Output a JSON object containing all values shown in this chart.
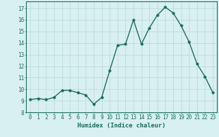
{
  "x": [
    0,
    1,
    2,
    3,
    4,
    5,
    6,
    7,
    8,
    9,
    10,
    11,
    12,
    13,
    14,
    15,
    16,
    17,
    18,
    19,
    20,
    21,
    22,
    23
  ],
  "y": [
    9.1,
    9.2,
    9.1,
    9.3,
    9.9,
    9.9,
    9.7,
    9.5,
    8.7,
    9.3,
    11.6,
    13.8,
    13.9,
    16.0,
    13.9,
    15.3,
    16.4,
    17.1,
    16.6,
    15.5,
    14.1,
    12.2,
    11.1,
    9.7
  ],
  "xlabel": "Humidex (Indice chaleur)",
  "xlim": [
    -0.5,
    23.5
  ],
  "ylim": [
    8,
    17.6
  ],
  "yticks": [
    8,
    9,
    10,
    11,
    12,
    13,
    14,
    15,
    16,
    17
  ],
  "xticks": [
    0,
    1,
    2,
    3,
    4,
    5,
    6,
    7,
    8,
    9,
    10,
    11,
    12,
    13,
    14,
    15,
    16,
    17,
    18,
    19,
    20,
    21,
    22,
    23
  ],
  "line_color": "#1a6b5a",
  "marker_color": "#1a6b5a",
  "bg_color": "#d8f0f0",
  "grid_color": "#b8d8d0",
  "axis_color": "#1a6b5a",
  "label_color": "#1a6b5a",
  "tick_color": "#1a6b5a",
  "xlabel_fontsize": 6.5,
  "tick_fontsize": 5.5,
  "linewidth": 1.0,
  "markersize": 2.5
}
